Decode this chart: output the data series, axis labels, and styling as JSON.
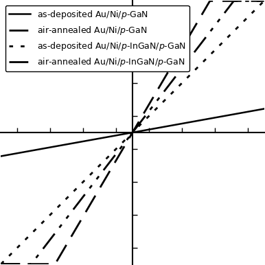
{
  "background_color": "#ffffff",
  "line_color": "#000000",
  "curves": [
    {
      "label": "as-deposited Au/Ni/$p$-GaN",
      "style": "solid",
      "linewidth": 1.8,
      "slope": 0.18
    },
    {
      "label": "air-annealed Au/Ni/$p$-GaN",
      "style": "dashdot2",
      "linewidth": 2.0,
      "slope": 1.3
    },
    {
      "label": "as-deposited Au/Ni/$p$-InGaN/$p$-GaN",
      "style": "dotted",
      "linewidth": 2.0,
      "slope": 1.0
    },
    {
      "label": "air-annealed Au/Ni/$p$-InGaN/$p$-GaN",
      "style": "dashed",
      "linewidth": 2.0,
      "slope": 1.7
    }
  ],
  "xlim": [
    -1.0,
    1.0
  ],
  "ylim": [
    -1.0,
    1.0
  ],
  "xticks": [
    -0.875,
    -0.625,
    -0.375,
    -0.125,
    0.125,
    0.375,
    0.625,
    0.875
  ],
  "yticks": [
    -0.875,
    -0.625,
    -0.375,
    -0.125,
    0.125,
    0.375,
    0.625,
    0.875
  ],
  "legend_fontsize": 9.0,
  "legend_loc": "upper left"
}
